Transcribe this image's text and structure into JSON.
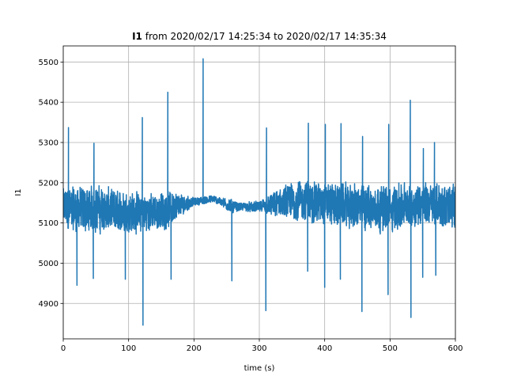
{
  "chart_data": {
    "type": "line",
    "title": {
      "bold_part": "I1",
      "rest": " from 2020/02/17 14:25:34 to 2020/02/17 14:35:34"
    },
    "xlabel": "time (s)",
    "ylabel": "I1",
    "xlim": [
      0,
      600
    ],
    "ylim": [
      4812,
      5540
    ],
    "x_ticks": [
      0,
      100,
      200,
      300,
      400,
      500,
      600
    ],
    "y_ticks": [
      4900,
      5000,
      5100,
      5200,
      5300,
      5400,
      5500
    ],
    "grid": true,
    "series_color": "#1f77b4",
    "series": [
      {
        "name": "",
        "baseline": [
          [
            0,
            5135
          ],
          [
            50,
            5135
          ],
          [
            80,
            5130
          ],
          [
            120,
            5125
          ],
          [
            150,
            5128
          ],
          [
            190,
            5150
          ],
          [
            230,
            5160
          ],
          [
            260,
            5140
          ],
          [
            300,
            5140
          ],
          [
            360,
            5155
          ],
          [
            400,
            5150
          ],
          [
            450,
            5140
          ],
          [
            500,
            5135
          ],
          [
            550,
            5150
          ],
          [
            600,
            5140
          ]
        ],
        "amplitude": [
          [
            0,
            55
          ],
          [
            15,
            60
          ],
          [
            40,
            60
          ],
          [
            90,
            55
          ],
          [
            120,
            50
          ],
          [
            165,
            45
          ],
          [
            185,
            25
          ],
          [
            200,
            10
          ],
          [
            240,
            10
          ],
          [
            255,
            20
          ],
          [
            270,
            10
          ],
          [
            300,
            15
          ],
          [
            320,
            30
          ],
          [
            345,
            50
          ],
          [
            380,
            55
          ],
          [
            420,
            55
          ],
          [
            470,
            60
          ],
          [
            520,
            60
          ],
          [
            560,
            55
          ],
          [
            600,
            55
          ]
        ],
        "extremes": [
          {
            "x": 8,
            "y": 5337
          },
          {
            "x": 21,
            "y": 4945
          },
          {
            "x": 46,
            "y": 4962
          },
          {
            "x": 47,
            "y": 5298
          },
          {
            "x": 95,
            "y": 4960
          },
          {
            "x": 121,
            "y": 5362
          },
          {
            "x": 122,
            "y": 4846
          },
          {
            "x": 160,
            "y": 5425
          },
          {
            "x": 165,
            "y": 4960
          },
          {
            "x": 214,
            "y": 5508
          },
          {
            "x": 258,
            "y": 4956
          },
          {
            "x": 310,
            "y": 4882
          },
          {
            "x": 311,
            "y": 5336
          },
          {
            "x": 374,
            "y": 4980
          },
          {
            "x": 375,
            "y": 5348
          },
          {
            "x": 400,
            "y": 4940
          },
          {
            "x": 401,
            "y": 5345
          },
          {
            "x": 424,
            "y": 4960
          },
          {
            "x": 425,
            "y": 5347
          },
          {
            "x": 457,
            "y": 4880
          },
          {
            "x": 458,
            "y": 5315
          },
          {
            "x": 497,
            "y": 4922
          },
          {
            "x": 498,
            "y": 5345
          },
          {
            "x": 531,
            "y": 5405
          },
          {
            "x": 532,
            "y": 4865
          },
          {
            "x": 550,
            "y": 4965
          },
          {
            "x": 551,
            "y": 5285
          },
          {
            "x": 568,
            "y": 5300
          },
          {
            "x": 570,
            "y": 4970
          }
        ]
      }
    ]
  }
}
